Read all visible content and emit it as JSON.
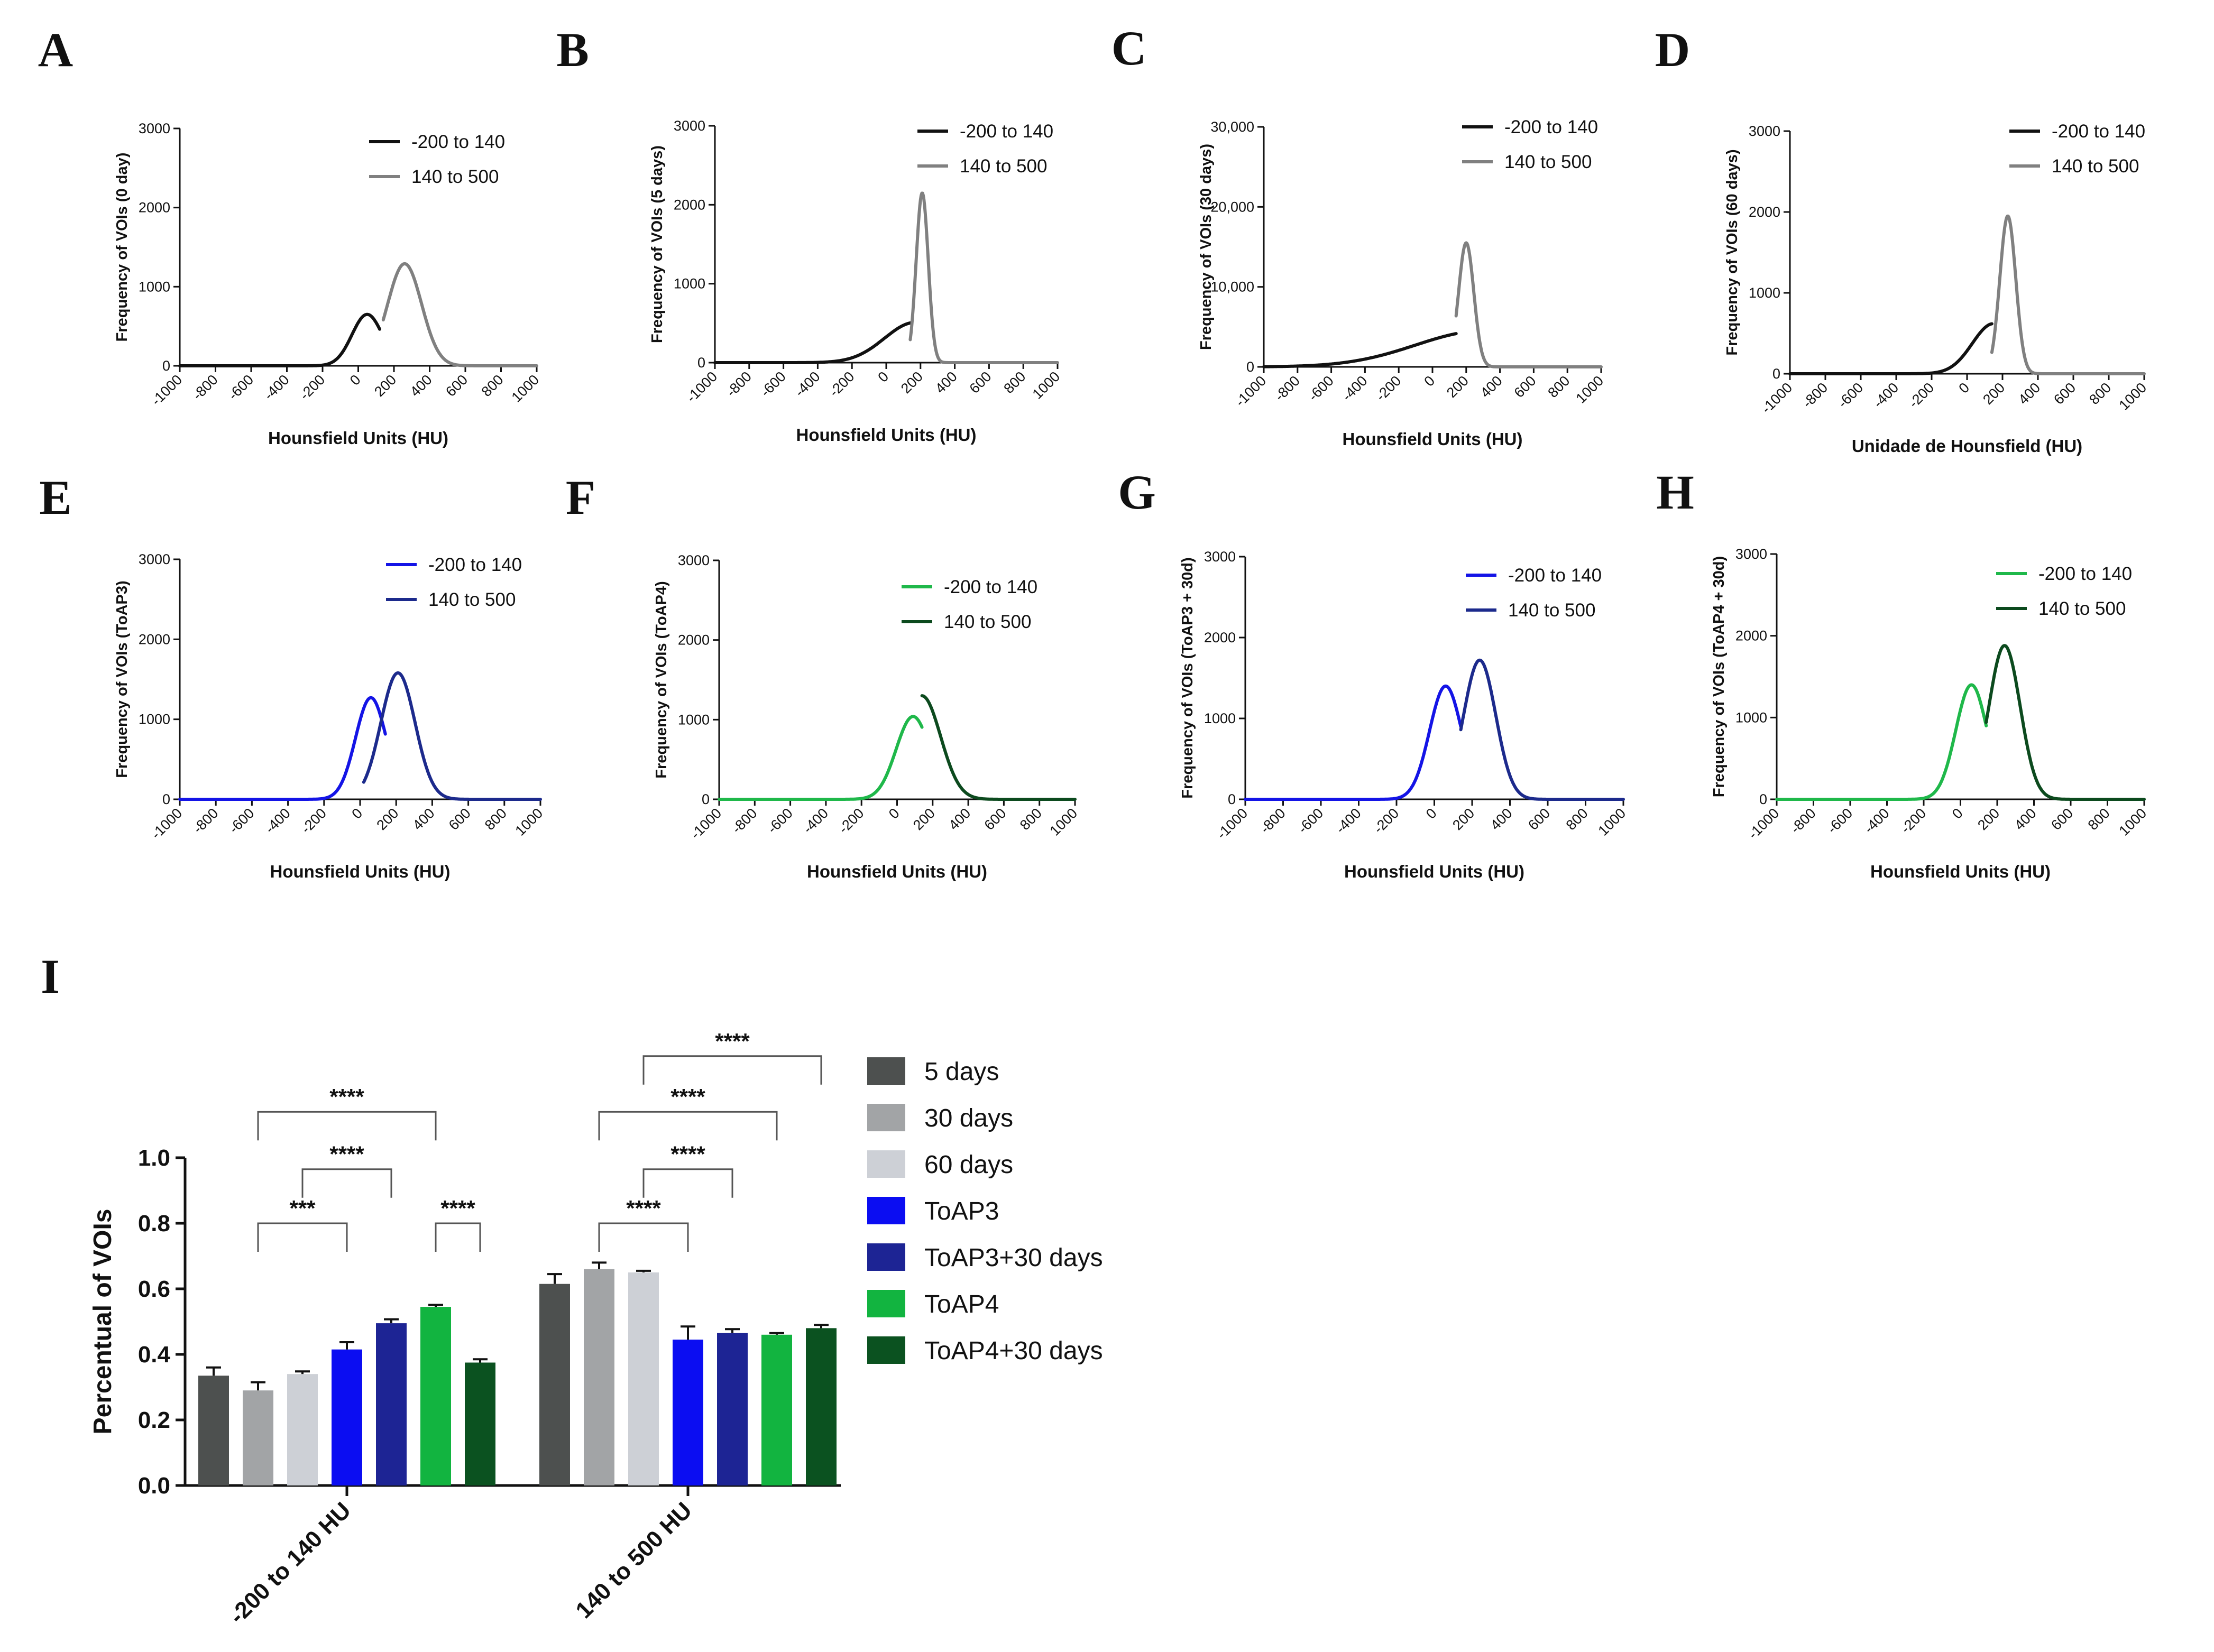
{
  "chart_data": [
    {
      "panel": "A",
      "type": "line",
      "xlabel": "Hounsfield Units (HU)",
      "ylabel": "Frequency of VOIs (0 day)",
      "xlim": [
        -1000,
        1000
      ],
      "ylim": [
        0,
        3000
      ],
      "xticks": [
        "-1000",
        "-800",
        "-600",
        "-400",
        "-200",
        "0",
        "200",
        "400",
        "600",
        "800",
        "1000"
      ],
      "yticks": [
        "0",
        "1000",
        "2000",
        "3000"
      ],
      "series": [
        {
          "name": "-200 to 140",
          "color": "#111111",
          "range": [
            -1000,
            120
          ],
          "gauss": {
            "a": 650,
            "mu": 50,
            "sigma": 85
          }
        },
        {
          "name": "140 to 500",
          "color": "#808080",
          "range": [
            140,
            1000
          ],
          "gauss": {
            "a": 1290,
            "mu": 260,
            "sigma": 95
          }
        }
      ]
    },
    {
      "panel": "B",
      "type": "line",
      "xlabel": "Hounsfield Units (HU)",
      "ylabel": "Frequency of VOIs (5 days)",
      "xlim": [
        -1000,
        1000
      ],
      "ylim": [
        0,
        3000
      ],
      "xticks": [
        "-1000",
        "-800",
        "-600",
        "-400",
        "-200",
        "0",
        "200",
        "400",
        "600",
        "800",
        "1000"
      ],
      "yticks": [
        "0",
        "1000",
        "2000",
        "3000"
      ],
      "series": [
        {
          "name": "-200 to 140",
          "color": "#111111",
          "range": [
            -1000,
            140
          ],
          "gauss": {
            "a": 510,
            "mu": 170,
            "sigma": 180
          }
        },
        {
          "name": "140 to 500",
          "color": "#808080",
          "range": [
            140,
            1000
          ],
          "gauss": {
            "a": 2150,
            "mu": 210,
            "sigma": 35
          }
        }
      ]
    },
    {
      "panel": "C",
      "type": "line",
      "xlabel": "Hounsfield Units (HU)",
      "ylabel": "Frequency of VOIs (30 days)",
      "xlim": [
        -1000,
        1000
      ],
      "ylim": [
        0,
        30000
      ],
      "xticks": [
        "-1000",
        "-800",
        "-600",
        "-400",
        "-200",
        "0",
        "200",
        "400",
        "600",
        "800",
        "1000"
      ],
      "yticks": [
        "0",
        "10,000",
        "20,000",
        "30,000"
      ],
      "series": [
        {
          "name": "-200 to 140",
          "color": "#111111",
          "range": [
            -1000,
            140
          ],
          "gauss": {
            "a": 4500,
            "mu": 300,
            "sigma": 400
          }
        },
        {
          "name": "140 to 500",
          "color": "#808080",
          "range": [
            140,
            1000
          ],
          "gauss": {
            "a": 15500,
            "mu": 200,
            "sigma": 45
          }
        }
      ]
    },
    {
      "panel": "D",
      "type": "line",
      "xlabel": "Unidade de Hounsfield (HU)",
      "ylabel": "Frequency of VOIs (60 days)",
      "xlim": [
        -1000,
        1000
      ],
      "ylim": [
        0,
        3000
      ],
      "xticks": [
        "-1000",
        "-800",
        "-600",
        "-400",
        "-200",
        "0",
        "200",
        "400",
        "600",
        "800",
        "1000"
      ],
      "yticks": [
        "0",
        "1000",
        "2000",
        "3000"
      ],
      "series": [
        {
          "name": "-200 to 140",
          "color": "#111111",
          "range": [
            -1000,
            140
          ],
          "gauss": {
            "a": 620,
            "mu": 150,
            "sigma": 120
          }
        },
        {
          "name": "140 to 500",
          "color": "#808080",
          "range": [
            140,
            1000
          ],
          "gauss": {
            "a": 1950,
            "mu": 230,
            "sigma": 45
          }
        }
      ]
    },
    {
      "panel": "E",
      "type": "line",
      "xlabel": "Hounsfield Units (HU)",
      "ylabel": "Frequency of VOIs (ToAP3)",
      "xlim": [
        -1000,
        1000
      ],
      "ylim": [
        0,
        3000
      ],
      "xticks": [
        "-1000",
        "-800",
        "-600",
        "-400",
        "-200",
        "0",
        "200",
        "400",
        "600",
        "800",
        "1000"
      ],
      "yticks": [
        "0",
        "1000",
        "2000",
        "3000"
      ],
      "series": [
        {
          "name": "-200 to 140",
          "color": "#1414e6",
          "range": [
            -1000,
            140
          ],
          "gauss": {
            "a": 1270,
            "mu": 60,
            "sigma": 85
          }
        },
        {
          "name": "140 to 500",
          "color": "#1c2a8c",
          "range": [
            20,
            1000
          ],
          "gauss": {
            "a": 1580,
            "mu": 210,
            "sigma": 95
          }
        }
      ]
    },
    {
      "panel": "F",
      "type": "line",
      "xlabel": "Hounsfield Units (HU)",
      "ylabel": "Frequency of VOIs (ToAP4)",
      "xlim": [
        -1000,
        1000
      ],
      "ylim": [
        0,
        3000
      ],
      "xticks": [
        "-1000",
        "-800",
        "-600",
        "-400",
        "-200",
        "0",
        "200",
        "400",
        "600",
        "800",
        "1000"
      ],
      "yticks": [
        "0",
        "1000",
        "2000",
        "3000"
      ],
      "series": [
        {
          "name": "-200 to 140",
          "color": "#1fb84a",
          "range": [
            -1000,
            140
          ],
          "gauss": {
            "a": 1040,
            "mu": 90,
            "sigma": 95
          }
        },
        {
          "name": "140 to 500",
          "color": "#0c4a1e",
          "range": [
            140,
            1000
          ],
          "gauss": {
            "a": 1300,
            "mu": 140,
            "sigma": 105
          }
        }
      ]
    },
    {
      "panel": "G",
      "type": "line",
      "xlabel": "Hounsfield Units (HU)",
      "ylabel": "Frequency of VOIs (ToAP3 + 30d)",
      "xlim": [
        -1000,
        1000
      ],
      "ylim": [
        0,
        3000
      ],
      "xticks": [
        "-1000",
        "-800",
        "-600",
        "-400",
        "-200",
        "0",
        "200",
        "400",
        "600",
        "800",
        "1000"
      ],
      "yticks": [
        "0",
        "1000",
        "2000",
        "3000"
      ],
      "series": [
        {
          "name": "-200 to 140",
          "color": "#1414e6",
          "range": [
            -1000,
            140
          ],
          "gauss": {
            "a": 1400,
            "mu": 60,
            "sigma": 85
          }
        },
        {
          "name": "140 to 500",
          "color": "#1c2a8c",
          "range": [
            140,
            1000
          ],
          "gauss": {
            "a": 1720,
            "mu": 240,
            "sigma": 85
          }
        }
      ]
    },
    {
      "panel": "H",
      "type": "line",
      "xlabel": "Hounsfield Units (HU)",
      "ylabel": "Frequency of VOIs (ToAP4 + 30d)",
      "xlim": [
        -1000,
        1000
      ],
      "ylim": [
        0,
        3000
      ],
      "xticks": [
        "-1000",
        "-800",
        "-600",
        "-400",
        "-200",
        "0",
        "200",
        "400",
        "600",
        "800",
        "1000"
      ],
      "yticks": [
        "0",
        "1000",
        "2000",
        "3000"
      ],
      "series": [
        {
          "name": "-200 to 140",
          "color": "#1fb84a",
          "range": [
            -1000,
            140
          ],
          "gauss": {
            "a": 1400,
            "mu": 60,
            "sigma": 85
          }
        },
        {
          "name": "140 to 500",
          "color": "#0c4a1e",
          "range": [
            140,
            1000
          ],
          "gauss": {
            "a": 1880,
            "mu": 240,
            "sigma": 85
          }
        }
      ]
    },
    {
      "panel": "I",
      "type": "bar",
      "ylabel": "Percentual of VOIs",
      "ylim": [
        0,
        1.0
      ],
      "yticks": [
        "0.0",
        "0.2",
        "0.4",
        "0.6",
        "0.8",
        "1.0"
      ],
      "categories": [
        "-200 to 140 HU",
        "140 to 500 HU"
      ],
      "legend_position": "right",
      "series": [
        {
          "name": "5 days",
          "color": "#4d504f",
          "values": [
            0.335,
            0.615
          ],
          "errors": [
            0.025,
            0.03
          ]
        },
        {
          "name": "30 days",
          "color": "#a2a4a6",
          "values": [
            0.29,
            0.66
          ],
          "errors": [
            0.025,
            0.02
          ]
        },
        {
          "name": "60 days",
          "color": "#cdd0d6",
          "values": [
            0.34,
            0.65
          ],
          "errors": [
            0.008,
            0.005
          ]
        },
        {
          "name": "ToAP3",
          "color": "#0b0df2",
          "values": [
            0.415,
            0.445
          ],
          "errors": [
            0.022,
            0.04
          ]
        },
        {
          "name": "ToAP3+30 days",
          "color": "#1d2494",
          "values": [
            0.495,
            0.465
          ],
          "errors": [
            0.012,
            0.012
          ]
        },
        {
          "name": "ToAP4",
          "color": "#12b440",
          "values": [
            0.545,
            0.46
          ],
          "errors": [
            0.006,
            0.005
          ]
        },
        {
          "name": "ToAP4+30 days",
          "color": "#0b5220",
          "values": [
            0.375,
            0.48
          ],
          "errors": [
            0.01,
            0.01
          ]
        }
      ],
      "significance": [
        {
          "group": 0,
          "from": 1,
          "to": 3,
          "y": 0.8,
          "label": "***"
        },
        {
          "group": 0,
          "from": 2,
          "to": 4,
          "y": 0.965,
          "label": "****"
        },
        {
          "group": 0,
          "from": 1,
          "to": 5,
          "y": 1.14,
          "label": "****"
        },
        {
          "group": 0,
          "from": 5,
          "to": 6,
          "y": 0.8,
          "label": "****"
        },
        {
          "group": 1,
          "from": 1,
          "to": 3,
          "y": 0.8,
          "label": "****"
        },
        {
          "group": 1,
          "from": 2,
          "to": 4,
          "y": 0.965,
          "label": "****"
        },
        {
          "group": 1,
          "from": 1,
          "to": 5,
          "y": 1.14,
          "label": "****"
        },
        {
          "group": 1,
          "from": 2,
          "to": 6,
          "y": 1.31,
          "label": "****"
        }
      ]
    }
  ]
}
